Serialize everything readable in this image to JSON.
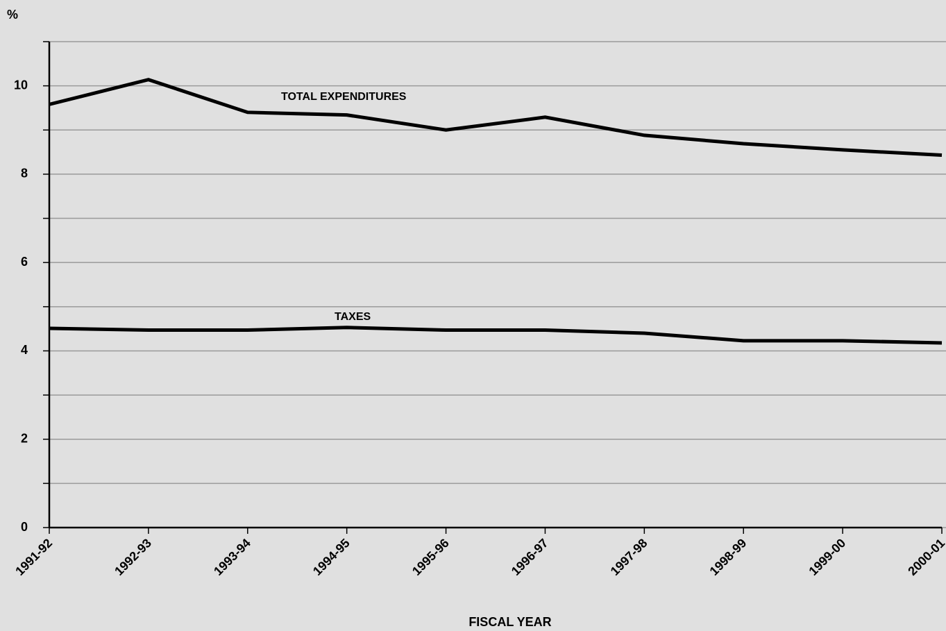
{
  "chart_data": {
    "type": "line",
    "y_unit": "%",
    "x_axis_label": "FISCAL YEAR",
    "categories": [
      "1991-92",
      "1992-93",
      "1993-94",
      "1994-95",
      "1995-96",
      "1996-97",
      "1997-98",
      "1998-99",
      "1999-00",
      "2000-01"
    ],
    "series": [
      {
        "name": "TOTAL EXPENDITURES",
        "color": "#000000",
        "values": [
          9.58,
          10.14,
          9.4,
          9.34,
          9.0,
          9.29,
          8.88,
          8.69,
          8.55,
          8.43
        ]
      },
      {
        "name": "TAXES",
        "color": "#000000",
        "values": [
          4.51,
          4.47,
          4.47,
          4.53,
          4.47,
          4.47,
          4.4,
          4.23,
          4.23,
          4.18
        ]
      }
    ],
    "ylim": [
      0,
      11
    ],
    "yticks": [
      0,
      2,
      4,
      6,
      8,
      10
    ],
    "yminor_ticks": [
      1,
      3,
      5,
      7,
      9,
      11
    ],
    "grid": true
  }
}
